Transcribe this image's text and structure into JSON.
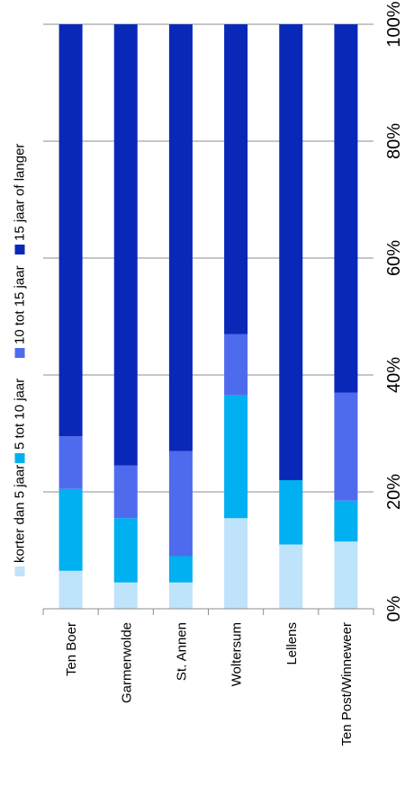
{
  "chart_data": {
    "type": "bar",
    "stacked": true,
    "orientation": "rotated-90",
    "categories": [
      "Ten Boer",
      "Garmerwolde",
      "St. Annen",
      "Woltersum",
      "Lellens",
      "Ten Post/Winneweer"
    ],
    "series": [
      {
        "name": "korter dan 5 jaar",
        "color": "#bfe3fa",
        "values": [
          6.5,
          4.5,
          4.5,
          15.5,
          11.0,
          11.5
        ]
      },
      {
        "name": "5 tot 10 jaar",
        "color": "#00b0f0",
        "values": [
          14.0,
          11.0,
          4.5,
          21.0,
          11.0,
          7.0
        ]
      },
      {
        "name": "10 tot 15 jaar",
        "color": "#4f6bed",
        "values": [
          9.0,
          9.0,
          18.0,
          10.5,
          0.0,
          18.5
        ]
      },
      {
        "name": "15 jaar of langer",
        "color": "#0a28b8",
        "values": [
          70.5,
          75.5,
          73.0,
          53.0,
          78.0,
          63.0
        ]
      }
    ],
    "value_ticks": [
      "0%",
      "20%",
      "40%",
      "60%",
      "80%",
      "100%"
    ],
    "ylim": [
      0,
      100
    ],
    "grid": true,
    "legend_position": "top (rotated)"
  }
}
